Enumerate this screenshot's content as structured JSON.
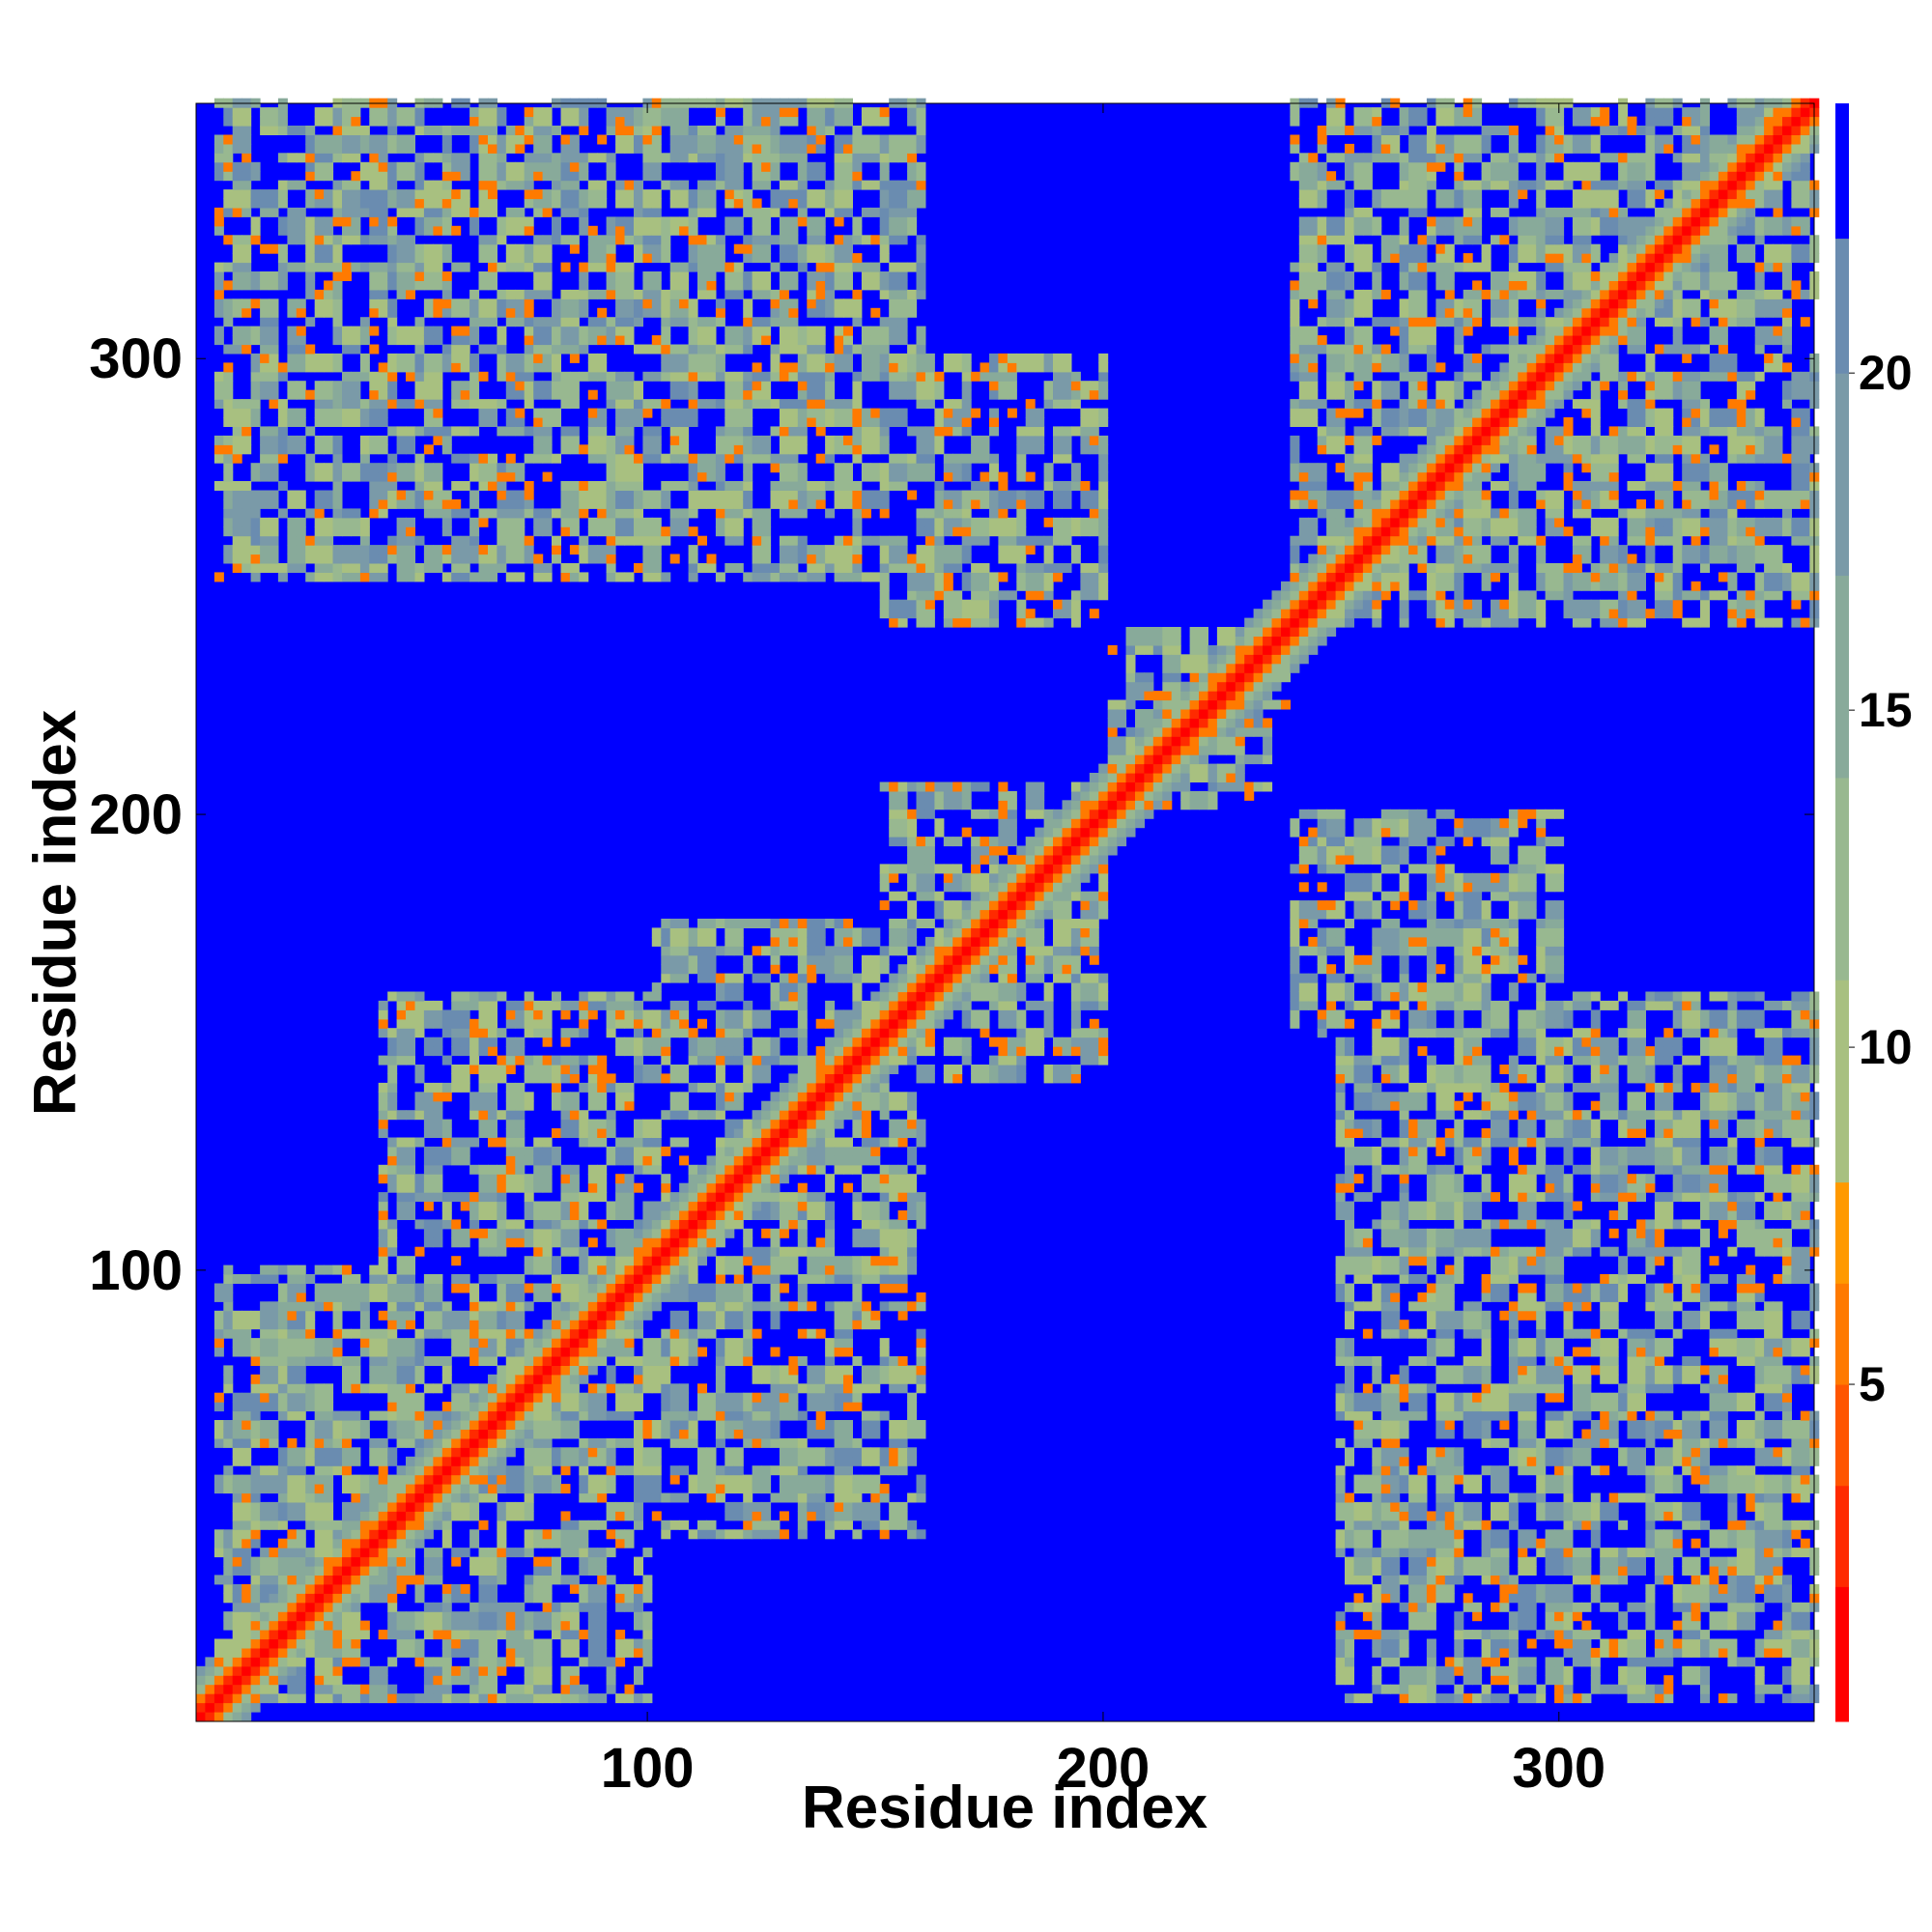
{
  "chart_data": {
    "type": "heatmap",
    "title": "",
    "xlabel": "Residue index",
    "ylabel": "Residue index",
    "n_residues": 356,
    "xlim": [
      1,
      356
    ],
    "ylim": [
      1,
      356
    ],
    "x_ticks": [
      100,
      200,
      300
    ],
    "y_ticks": [
      100,
      200,
      300
    ],
    "colorbar": {
      "min": 0,
      "max": 24,
      "ticks": [
        5,
        10,
        15,
        20
      ],
      "scale": [
        {
          "from": 0,
          "to": 2,
          "color": "#ff0000"
        },
        {
          "from": 2,
          "to": 3.5,
          "color": "#ff2a00"
        },
        {
          "from": 3.5,
          "to": 5,
          "color": "#ff5500"
        },
        {
          "from": 5,
          "to": 6.5,
          "color": "#ff7a00"
        },
        {
          "from": 6.5,
          "to": 8,
          "color": "#ff9900"
        },
        {
          "from": 8,
          "to": 11,
          "color": "#a8c080"
        },
        {
          "from": 11,
          "to": 14,
          "color": "#98b890"
        },
        {
          "from": 14,
          "to": 17,
          "color": "#88aa9a"
        },
        {
          "from": 17,
          "to": 20,
          "color": "#7a9aa8"
        },
        {
          "from": 20,
          "to": 22,
          "color": "#6a8cb0"
        },
        {
          "from": 22,
          "to": 24,
          "color": "#0000ff"
        }
      ]
    },
    "background_color": "#0000ff",
    "contact_regions": [
      {
        "x": [
          5,
          100
        ],
        "y": [
          5,
          100
        ]
      },
      {
        "x": [
          100,
          160
        ],
        "y": [
          40,
          175
        ]
      },
      {
        "x": [
          40,
          160
        ],
        "y": [
          100,
          160
        ]
      },
      {
        "x": [
          150,
          200
        ],
        "y": [
          140,
          205
        ]
      },
      {
        "x": [
          200,
          240
        ],
        "y": [
          200,
          240
        ]
      },
      {
        "x": [
          240,
          356
        ],
        "y": [
          240,
          356
        ]
      },
      {
        "x": [
          150,
          200
        ],
        "y": [
          240,
          300
        ]
      },
      {
        "x": [
          240,
          300
        ],
        "y": [
          150,
          200
        ]
      },
      {
        "x": [
          5,
          160
        ],
        "y": [
          250,
          356
        ]
      },
      {
        "x": [
          250,
          356
        ],
        "y": [
          5,
          160
        ]
      }
    ]
  }
}
